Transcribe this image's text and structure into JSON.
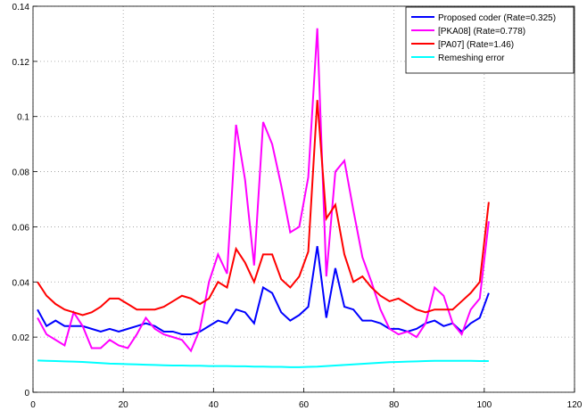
{
  "chart_data": {
    "type": "line",
    "x": [
      1,
      3,
      5,
      7,
      9,
      11,
      13,
      15,
      17,
      19,
      21,
      23,
      25,
      27,
      29,
      31,
      33,
      35,
      37,
      39,
      41,
      43,
      45,
      47,
      49,
      51,
      53,
      55,
      57,
      59,
      61,
      63,
      65,
      67,
      69,
      71,
      73,
      75,
      77,
      79,
      81,
      83,
      85,
      87,
      89,
      91,
      93,
      95,
      97,
      99,
      101
    ],
    "series": [
      {
        "name": "Proposed coder (Rate=0.325)",
        "color": "#0000ff",
        "values": [
          0.03,
          0.024,
          0.026,
          0.024,
          0.024,
          0.024,
          0.023,
          0.022,
          0.023,
          0.022,
          0.023,
          0.024,
          0.025,
          0.024,
          0.022,
          0.022,
          0.021,
          0.021,
          0.022,
          0.024,
          0.026,
          0.025,
          0.03,
          0.029,
          0.025,
          0.038,
          0.036,
          0.029,
          0.026,
          0.028,
          0.031,
          0.053,
          0.027,
          0.045,
          0.031,
          0.03,
          0.026,
          0.026,
          0.025,
          0.023,
          0.023,
          0.022,
          0.023,
          0.025,
          0.026,
          0.024,
          0.025,
          0.022,
          0.025,
          0.027,
          0.036
        ]
      },
      {
        "name": "[PKA08] (Rate=0.778)",
        "color": "#ff00ff",
        "values": [
          0.027,
          0.021,
          0.019,
          0.017,
          0.029,
          0.024,
          0.016,
          0.016,
          0.019,
          0.017,
          0.016,
          0.021,
          0.027,
          0.023,
          0.021,
          0.02,
          0.019,
          0.015,
          0.023,
          0.04,
          0.05,
          0.043,
          0.097,
          0.077,
          0.046,
          0.098,
          0.09,
          0.075,
          0.058,
          0.06,
          0.078,
          0.132,
          0.042,
          0.08,
          0.084,
          0.066,
          0.049,
          0.04,
          0.03,
          0.023,
          0.021,
          0.022,
          0.02,
          0.025,
          0.038,
          0.035,
          0.025,
          0.021,
          0.03,
          0.034,
          0.062
        ]
      },
      {
        "name": "[PA07] (Rate=1.46)",
        "color": "#ff0000",
        "values": [
          0.04,
          0.035,
          0.032,
          0.03,
          0.029,
          0.028,
          0.029,
          0.031,
          0.034,
          0.034,
          0.032,
          0.03,
          0.03,
          0.03,
          0.031,
          0.033,
          0.035,
          0.034,
          0.032,
          0.034,
          0.04,
          0.038,
          0.052,
          0.047,
          0.04,
          0.05,
          0.05,
          0.041,
          0.038,
          0.042,
          0.051,
          0.106,
          0.063,
          0.068,
          0.05,
          0.04,
          0.042,
          0.038,
          0.035,
          0.033,
          0.034,
          0.032,
          0.03,
          0.029,
          0.03,
          0.03,
          0.03,
          0.033,
          0.036,
          0.04,
          0.069
        ]
      },
      {
        "name": "Remeshing error",
        "color": "#00ffff",
        "values": [
          0.0115,
          0.0114,
          0.0113,
          0.0112,
          0.0111,
          0.011,
          0.0108,
          0.0106,
          0.0104,
          0.0103,
          0.0102,
          0.0101,
          0.01,
          0.0099,
          0.0098,
          0.0097,
          0.0097,
          0.0096,
          0.0096,
          0.0095,
          0.0095,
          0.0095,
          0.0094,
          0.0094,
          0.0093,
          0.0093,
          0.0092,
          0.0092,
          0.0091,
          0.0091,
          0.0092,
          0.0093,
          0.0095,
          0.0097,
          0.0099,
          0.0101,
          0.0103,
          0.0105,
          0.0107,
          0.0109,
          0.011,
          0.0111,
          0.0112,
          0.0113,
          0.0114,
          0.0114,
          0.0114,
          0.0114,
          0.0114,
          0.0113,
          0.0113
        ]
      }
    ],
    "xlim": [
      0,
      120
    ],
    "xticks": [
      0,
      20,
      40,
      60,
      80,
      100,
      120
    ],
    "ylim": [
      0,
      0.14
    ],
    "yticks": [
      0,
      0.02,
      0.04,
      0.06,
      0.08,
      0.1,
      0.12,
      0.14
    ],
    "grid": true,
    "legend": "top-right"
  }
}
